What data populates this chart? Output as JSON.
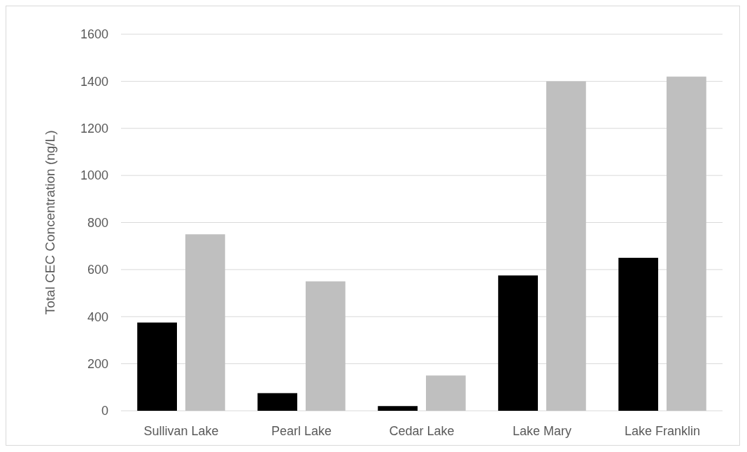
{
  "chart_data": {
    "type": "bar",
    "ylabel": "Total CEC Concentration (ng/L)",
    "categories": [
      "Sullivan Lake",
      "Pearl Lake",
      "Cedar Lake",
      "Lake Mary",
      "Lake Franklin"
    ],
    "series": [
      {
        "color": "#000000",
        "values": [
          375,
          75,
          20,
          575,
          650
        ]
      },
      {
        "color": "#bfbfbf",
        "values": [
          750,
          550,
          150,
          1400,
          1420
        ]
      }
    ],
    "ylim": [
      0,
      1600
    ],
    "yticks": [
      0,
      200,
      400,
      600,
      800,
      1000,
      1200,
      1400,
      1600
    ],
    "grid": "y"
  }
}
